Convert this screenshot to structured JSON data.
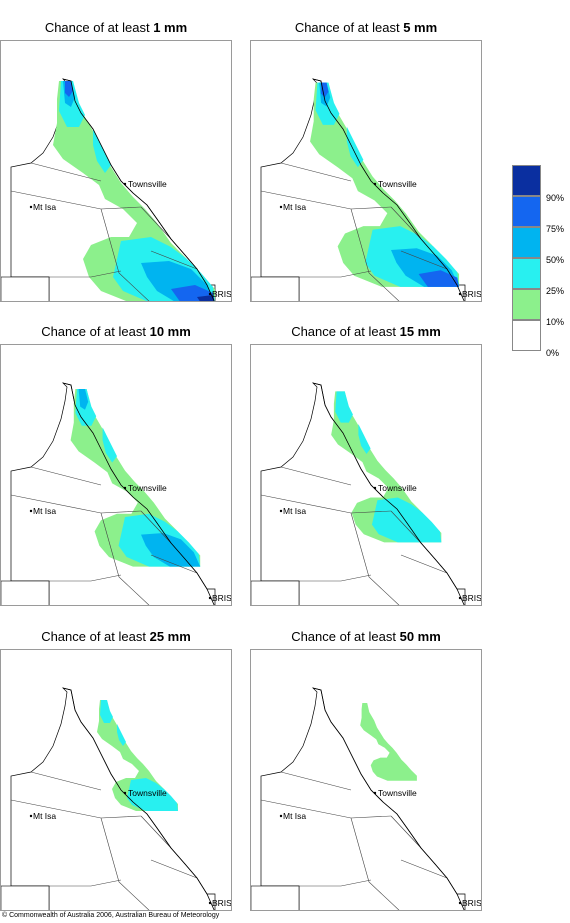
{
  "panels": [
    {
      "title_prefix": "Chance of at least ",
      "amount": "1 mm",
      "level": 6
    },
    {
      "title_prefix": "Chance of at least ",
      "amount": "5 mm",
      "level": 5
    },
    {
      "title_prefix": "Chance of at least ",
      "amount": "10 mm",
      "level": 4
    },
    {
      "title_prefix": "Chance of at least ",
      "amount": "15 mm",
      "level": 3
    },
    {
      "title_prefix": "Chance of at least ",
      "amount": "25 mm",
      "level": 2
    },
    {
      "title_prefix": "Chance of at least ",
      "amount": "50 mm",
      "level": 1
    }
  ],
  "map_labels": {
    "townsville": "Townsville",
    "mt_isa": "Mt Isa",
    "brisbane": "BRIS"
  },
  "legend": {
    "labels": [
      "90%",
      "75%",
      "50%",
      "25%",
      "10%",
      "0%"
    ],
    "colors": [
      "#0a2fa0",
      "#1466f0",
      "#00b4f0",
      "#28f0f0",
      "#8cf08c",
      "#ffffff"
    ]
  },
  "footer": "© Commonwealth of Australia 2006, Australian Bureau of Meteorology"
}
